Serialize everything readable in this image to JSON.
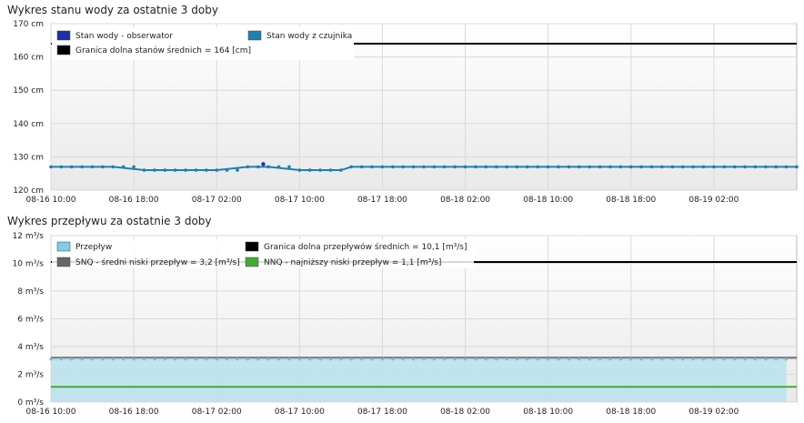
{
  "chart_data": [
    {
      "type": "line",
      "title": "Wykres stanu wody za ostatnie 3 doby",
      "ylim": [
        120,
        170
      ],
      "y_ticks": [
        "120 cm",
        "130 cm",
        "140 cm",
        "150 cm",
        "160 cm",
        "170 cm"
      ],
      "x_ticks": [
        "08-16 10:00",
        "08-16 18:00",
        "08-17 02:00",
        "08-17 10:00",
        "08-17 18:00",
        "08-18 02:00",
        "08-18 10:00",
        "08-18 18:00",
        "08-19 02:00"
      ],
      "x_range_hours": [
        0,
        72
      ],
      "grid": true,
      "legend": [
        {
          "label": "Stan wody - obserwator",
          "color": "#1c2fa8"
        },
        {
          "label": "Stan wody z czujnika",
          "color": "#1f7fb0"
        },
        {
          "label": "Granica dolna stanów średnich = 164 [cm]",
          "color": "#000000"
        }
      ],
      "threshold": {
        "label": "Granica dolna stanów średnich = 164 [cm]",
        "value": 164
      },
      "series": [
        {
          "name": "Stan wody z czujnika",
          "color": "#1f7fb0",
          "x_hours": [
            0,
            6,
            9,
            16,
            19,
            21,
            24,
            28,
            29,
            32
          ],
          "values": [
            127,
            127,
            126,
            126,
            127,
            127,
            126,
            126,
            127,
            127
          ]
        },
        {
          "name": "Stan wody - obserwator",
          "color": "#1c2fa8",
          "x_hours": [
            20.5
          ],
          "values": [
            127
          ]
        }
      ]
    },
    {
      "type": "area",
      "title": "Wykres przepływu za ostatnie 3 doby",
      "ylim": [
        0,
        12
      ],
      "y_ticks": [
        "0 m³/s",
        "2 m³/s",
        "4 m³/s",
        "6 m³/s",
        "8 m³/s",
        "10 m³/s",
        "12 m³/s"
      ],
      "x_ticks": [
        "08-16 10:00",
        "08-16 18:00",
        "08-17 02:00",
        "08-17 10:00",
        "08-17 18:00",
        "08-18 02:00",
        "08-18 10:00",
        "08-18 18:00",
        "08-19 02:00"
      ],
      "grid": true,
      "legend": [
        {
          "label": "Przepływ",
          "color": "#7fcde8"
        },
        {
          "label": "Granica dolna przepływów średnich = 10,1 [m³/s]",
          "color": "#000000"
        },
        {
          "label": "SNQ - średni niski przepływ = 3,2 [m³/s]",
          "color": "#666666"
        },
        {
          "label": "NNQ - najniższy niski przepływ = 1,1 [m³/s]",
          "color": "#44aa33"
        }
      ],
      "thresholds": [
        {
          "label": "Granica dolna przepływów średnich = 10,1 [m³/s]",
          "value": 10.1,
          "color": "#000000"
        },
        {
          "label": "SNQ - średni niski przepływ = 3,2 [m³/s]",
          "value": 3.2,
          "color": "#666666"
        },
        {
          "label": "NNQ - najniższy niski przepływ = 1,1 [m³/s]",
          "value": 1.1,
          "color": "#44aa33"
        }
      ],
      "series": [
        {
          "name": "Przepływ",
          "color": "#7fcde8",
          "x_hours": [
            0,
            71
          ],
          "values": [
            3.1,
            3.1
          ]
        }
      ]
    }
  ]
}
